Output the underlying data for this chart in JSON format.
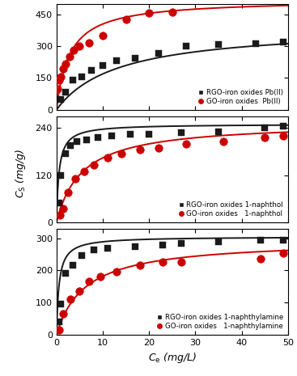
{
  "panel1": {
    "ylim": [
      0,
      500
    ],
    "yticks": [
      0,
      150,
      300,
      450
    ],
    "rgo_scatter_x": [
      1.0,
      2.0,
      3.5,
      5.5,
      7.5,
      10.0,
      13.0,
      17.0,
      22.0,
      28.0,
      35.0,
      43.0,
      49.0
    ],
    "rgo_scatter_y": [
      50,
      85,
      140,
      155,
      185,
      210,
      230,
      245,
      265,
      300,
      308,
      312,
      318
    ],
    "go_scatter_x": [
      0.3,
      0.6,
      1.0,
      1.5,
      2.0,
      2.8,
      3.8,
      5.0,
      7.0,
      10.0,
      15.0,
      20.0,
      25.0
    ],
    "go_scatter_y": [
      100,
      140,
      155,
      195,
      215,
      250,
      280,
      300,
      315,
      350,
      425,
      455,
      460
    ],
    "rgo_langmuir_qmax": 395,
    "rgo_langmuir_kl": 0.075,
    "go_langmuir_qmax": 520,
    "go_langmuir_kl": 0.35,
    "legend1": "RGO-iron oxides Pb(II)",
    "legend2": "GO-iron oxides  Pb(II)"
  },
  "panel2": {
    "ylim": [
      0,
      270
    ],
    "yticks": [
      0,
      120,
      240
    ],
    "rgo_scatter_x": [
      0.5,
      1.0,
      2.0,
      3.0,
      4.5,
      6.5,
      9.0,
      12.0,
      16.0,
      20.0,
      27.0,
      35.0,
      45.0,
      49.0
    ],
    "rgo_scatter_y": [
      50,
      120,
      175,
      195,
      205,
      210,
      215,
      220,
      225,
      225,
      228,
      230,
      240,
      245
    ],
    "go_scatter_x": [
      0.8,
      1.5,
      2.5,
      4.0,
      6.0,
      8.0,
      11.0,
      14.0,
      18.0,
      22.0,
      28.0,
      36.0,
      45.0,
      49.0
    ],
    "go_scatter_y": [
      18,
      35,
      75,
      110,
      130,
      145,
      165,
      175,
      185,
      190,
      200,
      205,
      215,
      220
    ],
    "rgo_langmuir_qmax": 250,
    "rgo_langmuir_kl": 1.8,
    "go_langmuir_qmax": 255,
    "go_langmuir_kl": 0.18,
    "legend1": "RGO-iron oxides 1-naphthol",
    "legend2": "GO-iron oxides   1-naphthol"
  },
  "panel3": {
    "ylim": [
      0,
      330
    ],
    "yticks": [
      0,
      100,
      200,
      300
    ],
    "rgo_scatter_x": [
      0.5,
      1.0,
      2.0,
      3.5,
      5.5,
      8.0,
      11.0,
      17.0,
      23.0,
      27.0,
      35.0,
      44.0,
      49.0
    ],
    "rgo_scatter_y": [
      40,
      95,
      190,
      215,
      245,
      265,
      270,
      275,
      280,
      285,
      290,
      295,
      295
    ],
    "go_scatter_x": [
      0.5,
      1.5,
      3.0,
      5.0,
      7.0,
      9.5,
      13.0,
      18.0,
      23.0,
      27.0,
      44.0,
      49.0
    ],
    "go_scatter_y": [
      15,
      65,
      110,
      135,
      165,
      180,
      195,
      215,
      225,
      225,
      235,
      255
    ],
    "rgo_langmuir_qmax": 305,
    "rgo_langmuir_kl": 1.8,
    "go_langmuir_qmax": 295,
    "go_langmuir_kl": 0.16,
    "legend1": "RGO-iron oxides 1-naphthylamine",
    "legend2": "GO-iron oxides   1-naphthylamine"
  },
  "xlabel": "$C_{\\mathrm{e}}$ (mg/L)",
  "ylabel": "$C_{\\mathrm{S}}$ (mg/g)",
  "xlim": [
    0,
    50
  ],
  "xticks": [
    0,
    10,
    20,
    30,
    40,
    50
  ],
  "rgo_color": "#1a1a1a",
  "go_color": "#cc0000",
  "marker_rgo": "s",
  "marker_go": "o",
  "markersize": 5,
  "linewidth": 1.4
}
